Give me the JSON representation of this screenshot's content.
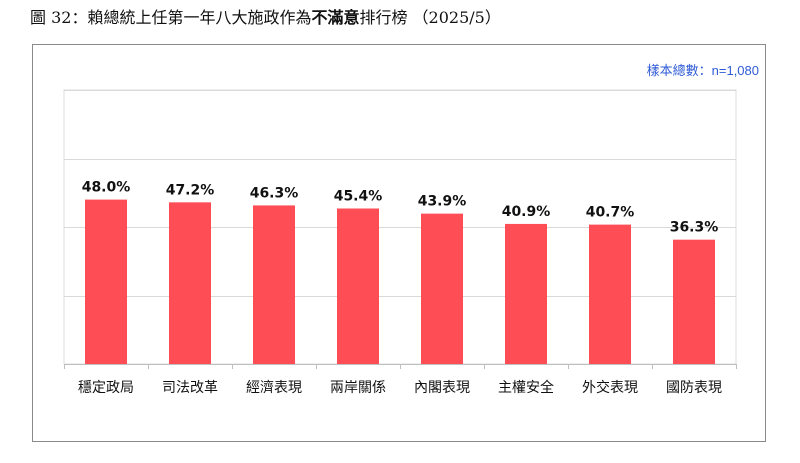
{
  "figure": {
    "title_prefix": "圖 32：賴總統上任第一年八大施政作為",
    "title_emphasis": "不滿意",
    "title_suffix": "排行榜 （2025/5）",
    "sample_note": "樣本總數：n=1,080"
  },
  "chart_data": {
    "type": "bar",
    "title": "",
    "xlabel": "",
    "ylabel": "",
    "categories": [
      "穩定政局",
      "司法改革",
      "經濟表現",
      "兩岸關係",
      "內閣表現",
      "主權安全",
      "外交表現",
      "國防表現"
    ],
    "values": [
      48.0,
      47.2,
      46.3,
      45.4,
      43.9,
      40.9,
      40.7,
      36.3
    ],
    "value_labels": [
      "48.0%",
      "47.2%",
      "46.3%",
      "45.4%",
      "43.9%",
      "40.9%",
      "40.7%",
      "36.3%"
    ],
    "ylim": [
      0,
      80
    ],
    "gridlines": [
      20,
      40,
      60,
      80
    ],
    "grid": true,
    "legend": "none",
    "bar_color": "#ff4d55"
  }
}
